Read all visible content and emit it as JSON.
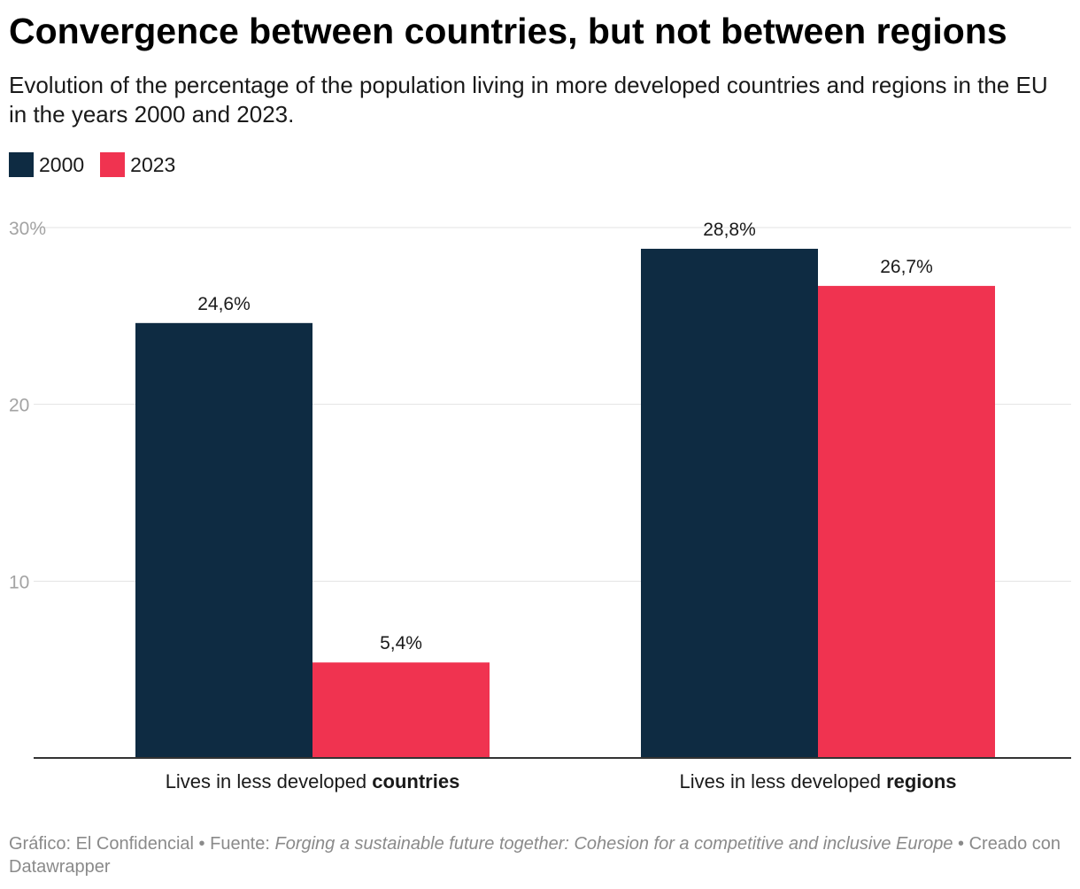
{
  "title": "Convergence between countries, but not between regions",
  "subtitle": "Evolution of the percentage of the population living in more developed countries and regions in the EU in the years 2000 and 2023.",
  "legend": [
    {
      "label": "2000",
      "color": "#0e2b42"
    },
    {
      "label": "2023",
      "color": "#f03350"
    }
  ],
  "chart_data": {
    "type": "bar",
    "categories": [
      {
        "prefix": "Lives in less developed ",
        "bold": "countries"
      },
      {
        "prefix": "Lives in less developed ",
        "bold": "regions"
      }
    ],
    "series": [
      {
        "name": "2000",
        "color": "#0e2b42",
        "values": [
          24.6,
          28.8
        ],
        "labels": [
          "24,6%",
          "28,8%"
        ]
      },
      {
        "name": "2023",
        "color": "#f03350",
        "values": [
          5.4,
          26.7
        ],
        "labels": [
          "5,4%",
          "26,7%"
        ]
      }
    ],
    "y_ticks": [
      {
        "value": 10,
        "label": "10"
      },
      {
        "value": 20,
        "label": "20"
      },
      {
        "value": 30,
        "label": "30%"
      }
    ],
    "ylim": [
      0,
      30
    ],
    "grid": true,
    "legend_position": "top-left"
  },
  "footer": {
    "credit": "Gráfico: El Confidencial • Fuente: ",
    "source": "Forging a sustainable future together: Cohesion for a competitive and inclusive Europe",
    "tail": " • Creado con Datawrapper"
  }
}
